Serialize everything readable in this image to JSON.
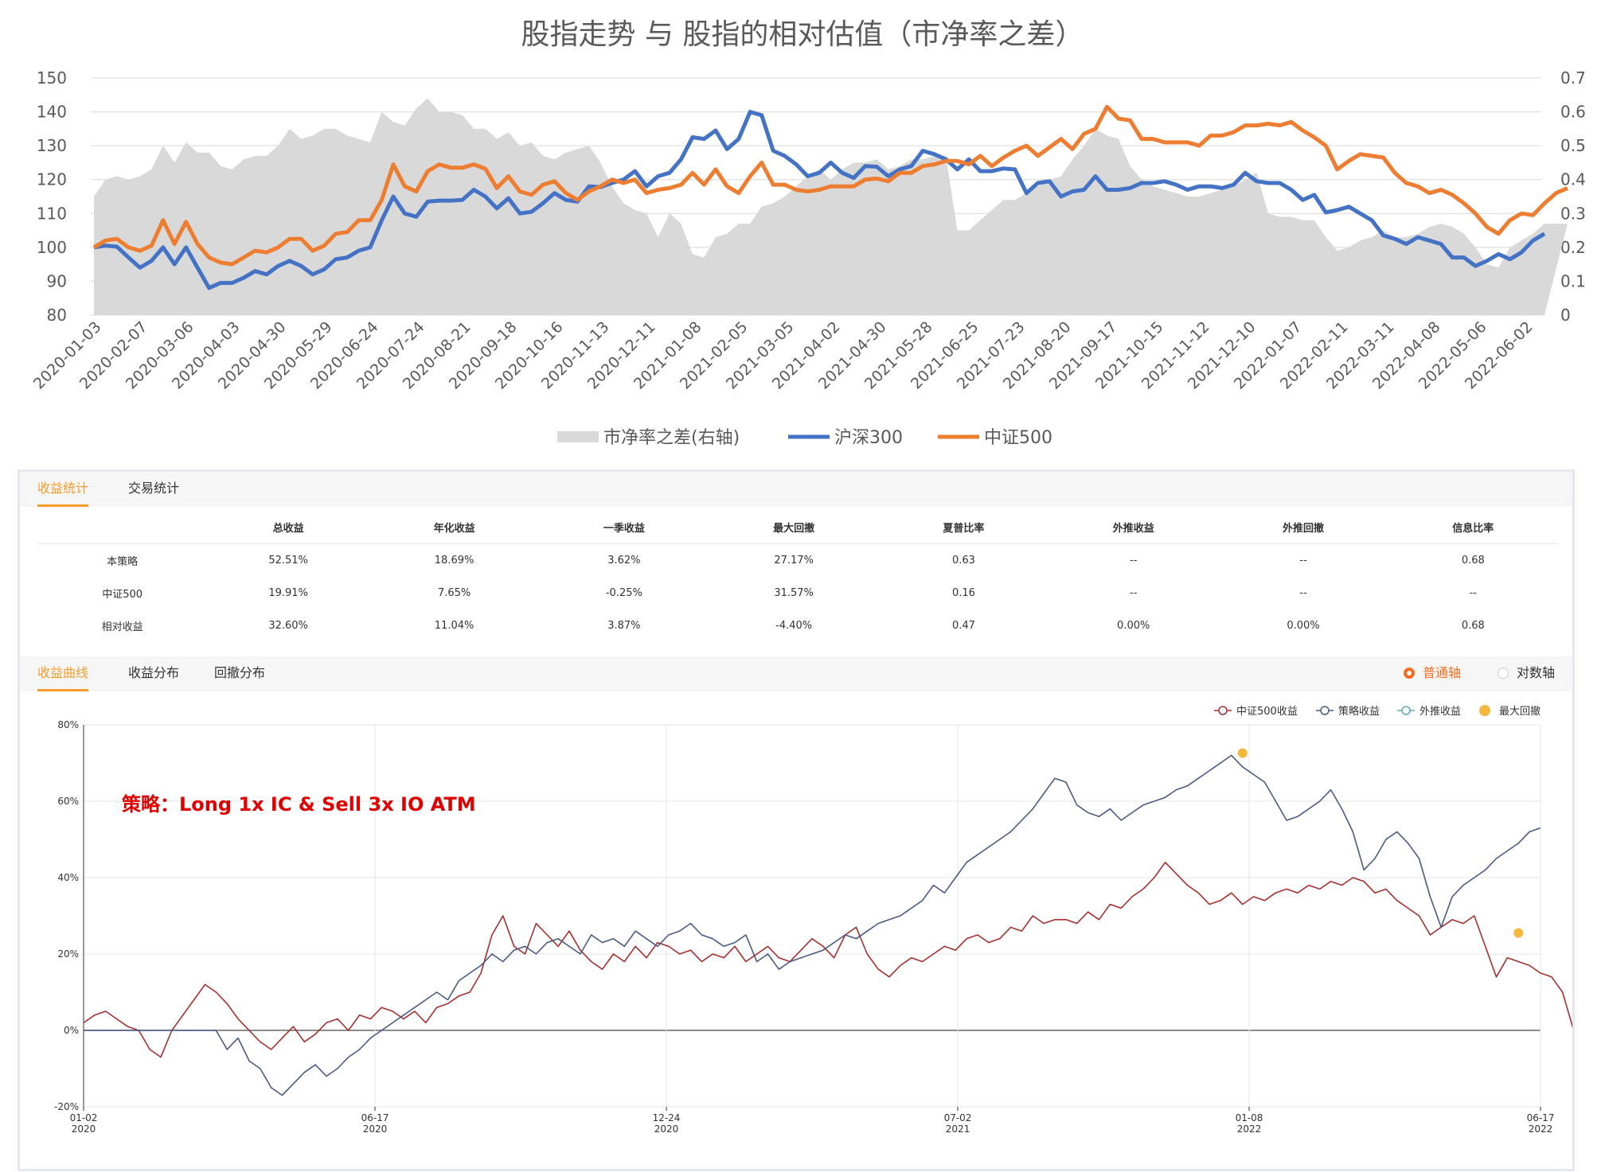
{
  "top_chart": {
    "title": "股指走势 与 股指的相对估值（市净率之差）"
  },
  "tabs_top": [
    {
      "label": "收益统计",
      "active": true
    },
    {
      "label": "交易统计",
      "active": false
    }
  ],
  "stats": {
    "headers": [
      "",
      "总收益",
      "年化收益",
      "一季收益",
      "最大回撤",
      "夏普比率",
      "外推收益",
      "外推回撤",
      "信息比率"
    ],
    "rows": [
      [
        "本策略",
        "52.51%",
        "18.69%",
        "3.62%",
        "27.17%",
        "0.63",
        "--",
        "--",
        "0.68"
      ],
      [
        "中证500",
        "19.91%",
        "7.65%",
        "-0.25%",
        "31.57%",
        "0.16",
        "--",
        "--",
        "--"
      ],
      [
        "相对收益",
        "32.60%",
        "11.04%",
        "3.87%",
        "-4.40%",
        "0.47",
        "0.00%",
        "0.00%",
        "0.68"
      ]
    ]
  },
  "tabs_bottom": [
    {
      "label": "收益曲线",
      "active": true
    },
    {
      "label": "收益分布",
      "active": false
    },
    {
      "label": "回撤分布",
      "active": false
    }
  ],
  "axis_options": [
    {
      "label": "普通轴",
      "selected": true,
      "color": "#f36c21"
    },
    {
      "label": "对数轴",
      "selected": false,
      "color": "#333333"
    }
  ],
  "colors": {
    "pb_area": "#d9d9d9",
    "hs300": "#4472c4",
    "zz500": "#ed7d31",
    "bench_line": "#a5302e",
    "strategy_line": "#4a5a85",
    "extrap_line": "#5fa8b8",
    "max_drawdown_marker": "#f5b83d",
    "tab_active": "#f39c2b",
    "annotation": "#e00000"
  },
  "chart_data": [
    {
      "type": "line",
      "title": "股指走势 与 股指的相对估值（市净率之差）",
      "x_ticks": [
        "2020-01-03",
        "2020-02-07",
        "2020-03-06",
        "2020-04-03",
        "2020-04-30",
        "2020-05-29",
        "2020-06-24",
        "2020-07-24",
        "2020-08-21",
        "2020-09-18",
        "2020-10-16",
        "2020-11-13",
        "2020-12-11",
        "2021-01-08",
        "2021-02-05",
        "2021-03-05",
        "2021-04-02",
        "2021-04-30",
        "2021-05-28",
        "2021-06-25",
        "2021-07-23",
        "2021-08-20",
        "2021-09-17",
        "2021-10-15",
        "2021-11-12",
        "2021-12-10",
        "2022-01-07",
        "2022-02-11",
        "2022-03-11",
        "2022-04-08",
        "2022-05-06",
        "2022-06-02"
      ],
      "ylim_left": [
        80,
        150
      ],
      "yticks_left": [
        80,
        90,
        100,
        110,
        120,
        130,
        140,
        150
      ],
      "ylim_right": [
        0,
        0.7
      ],
      "yticks_right": [
        "0",
        "0.1",
        "0.2",
        "0.3",
        "0.4",
        "0.5",
        "0.6",
        "0.7"
      ],
      "grid": "horizontal",
      "legend_position": "bottom",
      "series": [
        {
          "name": "市净率之差(右轴)",
          "axis": "right",
          "style": "area",
          "values": [
            0.35,
            0.4,
            0.41,
            0.4,
            0.41,
            0.43,
            0.5,
            0.45,
            0.51,
            0.48,
            0.48,
            0.44,
            0.43,
            0.46,
            0.47,
            0.47,
            0.5,
            0.55,
            0.52,
            0.53,
            0.55,
            0.55,
            0.53,
            0.52,
            0.51,
            0.6,
            0.57,
            0.56,
            0.61,
            0.64,
            0.6,
            0.6,
            0.59,
            0.55,
            0.55,
            0.52,
            0.54,
            0.5,
            0.51,
            0.47,
            0.46,
            0.48,
            0.49,
            0.5,
            0.45,
            0.38,
            0.33,
            0.31,
            0.3,
            0.23,
            0.3,
            0.27,
            0.18,
            0.17,
            0.23,
            0.24,
            0.27,
            0.27,
            0.32,
            0.33,
            0.35,
            0.38,
            0.41,
            0.43,
            0.4,
            0.43,
            0.45,
            0.45,
            0.46,
            0.43,
            0.44,
            0.46,
            0.46,
            0.47,
            0.47,
            0.25,
            0.25,
            0.28,
            0.31,
            0.34,
            0.34,
            0.36,
            0.38,
            0.4,
            0.41,
            0.46,
            0.5,
            0.55,
            0.53,
            0.52,
            0.44,
            0.4,
            0.38,
            0.37,
            0.36,
            0.35,
            0.35,
            0.36,
            0.37,
            0.38,
            0.4,
            0.42,
            0.3,
            0.29,
            0.29,
            0.28,
            0.28,
            0.23,
            0.19,
            0.2,
            0.22,
            0.23,
            0.25,
            0.23,
            0.23,
            0.24,
            0.26,
            0.27,
            0.26,
            0.24,
            0.2,
            0.15,
            0.14,
            0.2,
            0.22,
            0.24,
            0.27,
            0.27,
            0.27
          ]
        },
        {
          "name": "沪深300",
          "axis": "left",
          "style": "line",
          "values": [
            100,
            100.5,
            100.2,
            97,
            94,
            96,
            100,
            95,
            100,
            94,
            88,
            89.5,
            89.5,
            91,
            93,
            92,
            94.5,
            96,
            94.5,
            92,
            93.5,
            96.5,
            97,
            99,
            100,
            108,
            115,
            110,
            109,
            113.5,
            113.8,
            113.8,
            114,
            117,
            115,
            111.5,
            114.5,
            110,
            110.5,
            113,
            116,
            114,
            113.5,
            118,
            117.8,
            119,
            120,
            122.5,
            118,
            121,
            122,
            126,
            132.5,
            132,
            134.5,
            129,
            132,
            140,
            139,
            128.5,
            127,
            124.5,
            121,
            122,
            125,
            122,
            120.5,
            124,
            123.8,
            121,
            123,
            124,
            128.5,
            127.5,
            126,
            123,
            126,
            122.5,
            122.5,
            123.3,
            123,
            116,
            119,
            119.5,
            115,
            116.5,
            117,
            121,
            117,
            117,
            117.5,
            119,
            119,
            119.5,
            118.5,
            117,
            118,
            118,
            117.5,
            118.5,
            122,
            119.5,
            119,
            119,
            117,
            114,
            115.5,
            110.3,
            111,
            112,
            110,
            108,
            103.5,
            102.5,
            101,
            103,
            102,
            101,
            97,
            97,
            94.5,
            96,
            98,
            96.5,
            98.5,
            102,
            104
          ]
        },
        {
          "name": "中证500",
          "axis": "left",
          "style": "line",
          "values": [
            100,
            102,
            102.5,
            100,
            99,
            100.5,
            108,
            101,
            107.5,
            101,
            97,
            95.5,
            95,
            97,
            99,
            98.5,
            100,
            102.5,
            102.5,
            99,
            100.5,
            104,
            104.5,
            108,
            108,
            114,
            124.5,
            118,
            116.5,
            122.5,
            124.5,
            123.5,
            123.5,
            124.5,
            123.2,
            117.5,
            121,
            116.5,
            115.5,
            118.5,
            119.5,
            116,
            114,
            116.5,
            118,
            120,
            119,
            120,
            116,
            117,
            117.5,
            118.5,
            122,
            118.5,
            123,
            118,
            116,
            121,
            125,
            118.5,
            118.5,
            117,
            116.5,
            117,
            118,
            118,
            118,
            120,
            120.3,
            119.5,
            122,
            122,
            124,
            124.5,
            125.5,
            125.5,
            124.5,
            127,
            124,
            126.5,
            128.5,
            130,
            127,
            129.5,
            132,
            129,
            133.5,
            135,
            141.5,
            138,
            137.5,
            132,
            132,
            131,
            131,
            131,
            130,
            133,
            133,
            134,
            136,
            136,
            136.5,
            136,
            137,
            134.5,
            132.5,
            130,
            123,
            125.5,
            127.5,
            127,
            126.5,
            122,
            119,
            118,
            116,
            117,
            115.5,
            113,
            110,
            106,
            104,
            108,
            110,
            109.5,
            113,
            116,
            117.5
          ]
        }
      ]
    },
    {
      "type": "line",
      "annotation": "策略：Long 1x IC & Sell 3x IO ATM",
      "x_tick_labels": [
        {
          "date": "01-02",
          "year": "2020"
        },
        {
          "date": "06-17",
          "year": "2020"
        },
        {
          "date": "12-24",
          "year": "2020"
        },
        {
          "date": "07-02",
          "year": "2021"
        },
        {
          "date": "01-08",
          "year": "2022"
        },
        {
          "date": "06-17",
          "year": "2022"
        }
      ],
      "ylim": [
        -20,
        80
      ],
      "yticks": [
        "-20%",
        "0%",
        "20%",
        "40%",
        "60%",
        "80%"
      ],
      "grid": "both",
      "legend_position": "top-right",
      "legend": [
        {
          "name": "中证500收益",
          "color": "#a5302e",
          "symbol": "line-circle"
        },
        {
          "name": "策略收益",
          "color": "#4a5a85",
          "symbol": "line-circle"
        },
        {
          "name": "外推收益",
          "color": "#5fa8b8",
          "symbol": "line-circle"
        },
        {
          "name": "最大回撤",
          "color": "#f5b83d",
          "symbol": "dot"
        }
      ],
      "series": [
        {
          "name": "中证500收益",
          "values": [
            2,
            4,
            5,
            3,
            1,
            0,
            -5,
            -7,
            0,
            4,
            8,
            12,
            10,
            7,
            3,
            0,
            -3,
            -5,
            -2,
            1,
            -3,
            -1,
            2,
            3,
            0,
            4,
            3,
            6,
            5,
            3,
            5,
            2,
            6,
            7,
            9,
            10,
            15,
            25,
            30,
            22,
            20,
            28,
            25,
            22,
            26,
            21,
            18,
            16,
            20,
            18,
            22,
            19,
            23,
            22,
            20,
            21,
            18,
            20,
            19,
            22,
            18,
            20,
            22,
            19,
            18,
            21,
            24,
            22,
            19,
            25,
            27,
            20,
            16,
            14,
            17,
            19,
            18,
            20,
            22,
            21,
            24,
            25,
            23,
            24,
            27,
            26,
            30,
            28,
            29,
            29,
            28,
            31,
            29,
            33,
            32,
            35,
            37,
            40,
            44,
            41,
            38,
            36,
            33,
            34,
            36,
            33,
            35,
            34,
            36,
            37,
            36,
            38,
            37,
            39,
            38,
            40,
            39,
            36,
            37,
            34,
            32,
            30,
            25,
            27,
            29,
            28,
            30,
            22,
            14,
            19,
            18,
            17,
            15,
            14,
            10,
            0,
            5,
            7,
            9,
            11,
            12,
            15,
            16,
            17,
            20
          ]
        },
        {
          "name": "策略收益",
          "values": [
            0,
            0,
            0,
            0,
            0,
            0,
            0,
            0,
            0,
            0,
            0,
            0,
            0,
            -5,
            -2,
            -8,
            -10,
            -15,
            -17,
            -14,
            -11,
            -9,
            -12,
            -10,
            -7,
            -5,
            -2,
            0,
            2,
            4,
            6,
            8,
            10,
            8,
            13,
            15,
            17,
            20,
            18,
            21,
            22,
            20,
            23,
            24,
            22,
            20,
            25,
            23,
            24,
            22,
            26,
            24,
            22,
            25,
            26,
            28,
            25,
            24,
            22,
            23,
            25,
            18,
            20,
            16,
            18,
            19,
            20,
            21,
            23,
            25,
            24,
            26,
            28,
            29,
            30,
            32,
            34,
            38,
            36,
            40,
            44,
            46,
            48,
            50,
            52,
            55,
            58,
            62,
            66,
            65,
            59,
            57,
            56,
            58,
            55,
            57,
            59,
            60,
            61,
            63,
            64,
            66,
            68,
            70,
            72,
            69,
            67,
            65,
            60,
            55,
            56,
            58,
            60,
            63,
            58,
            52,
            42,
            45,
            50,
            52,
            49,
            45,
            35,
            27,
            35,
            38,
            40,
            42,
            45,
            47,
            49,
            52,
            53
          ]
        },
        {
          "name": "最大回撤",
          "points": [
            {
              "index": 105,
              "value": 72.6
            },
            {
              "index": 130,
              "value": 25.5
            }
          ]
        }
      ]
    }
  ]
}
